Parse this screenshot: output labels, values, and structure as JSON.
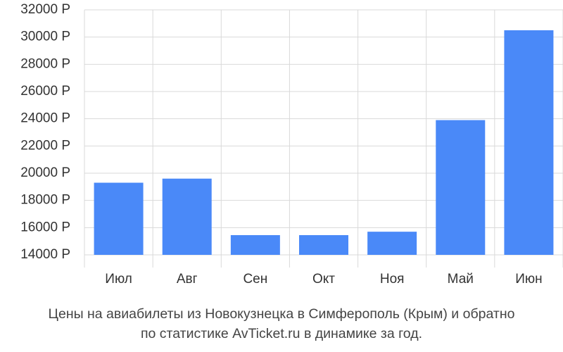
{
  "chart_data": {
    "type": "bar",
    "title": [
      "Цены на авиабилеты из Новокузнецка в Симферополь (Крым) и обратно",
      "по статистике AvTicket.ru в динамике за год."
    ],
    "categories": [
      "Июл",
      "Авг",
      "Сен",
      "Окт",
      "Ноя",
      "Май",
      "Июн"
    ],
    "values": [
      19300,
      19600,
      15450,
      15450,
      15700,
      23900,
      30500
    ],
    "color": "#4a89f8",
    "ylim": [
      14000,
      32000
    ],
    "yticks": [
      {
        "value": 14000,
        "label": "14000 Р"
      },
      {
        "value": 16000,
        "label": "16000 Р"
      },
      {
        "value": 18000,
        "label": "18000 Р"
      },
      {
        "value": 20000,
        "label": "20000 Р"
      },
      {
        "value": 22000,
        "label": "22000 Р"
      },
      {
        "value": 24000,
        "label": "24000 Р"
      },
      {
        "value": 26000,
        "label": "26000 Р"
      },
      {
        "value": 28000,
        "label": "28000 Р"
      },
      {
        "value": 30000,
        "label": "30000 Р"
      },
      {
        "value": 32000,
        "label": "32000 Р"
      }
    ],
    "grid": true
  }
}
